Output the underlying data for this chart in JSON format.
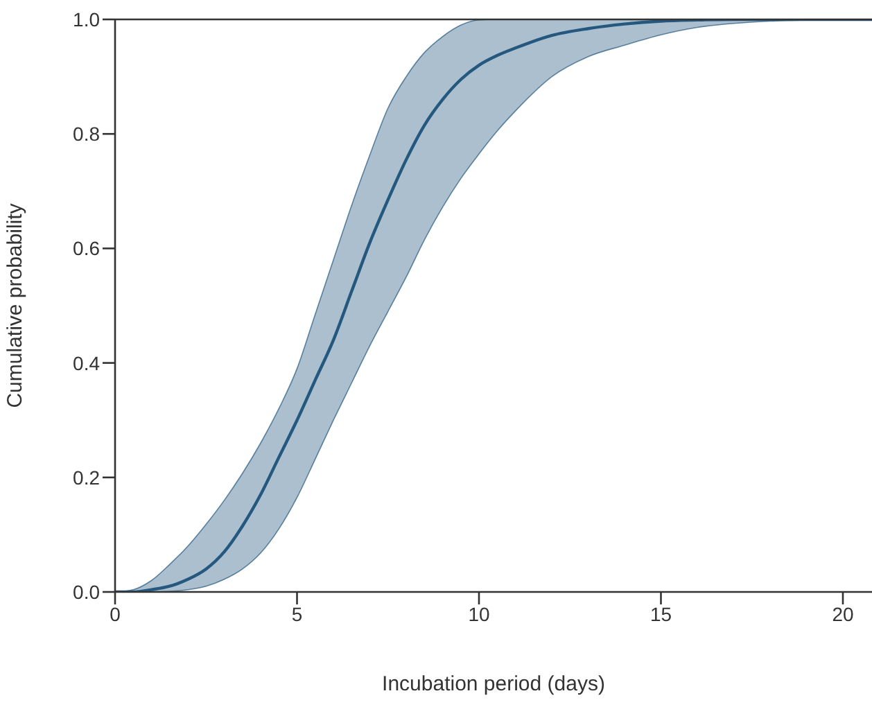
{
  "chart_data": {
    "type": "line",
    "xlabel": "Incubation period (days)",
    "ylabel": "Cumulative probability",
    "x": [
      0,
      0.5,
      1,
      1.5,
      2,
      2.5,
      3,
      3.5,
      4,
      4.5,
      5,
      5.5,
      6,
      6.5,
      7,
      7.5,
      8,
      8.5,
      9,
      9.5,
      10,
      10.5,
      11,
      12,
      13,
      14,
      15,
      16,
      17,
      18,
      19,
      20,
      20.8
    ],
    "series": [
      {
        "color": "#24587f",
        "values": [
          0,
          0,
          0.004,
          0.01,
          0.022,
          0.04,
          0.07,
          0.115,
          0.17,
          0.235,
          0.3,
          0.37,
          0.44,
          0.525,
          0.61,
          0.685,
          0.755,
          0.815,
          0.86,
          0.895,
          0.92,
          0.937,
          0.95,
          0.972,
          0.984,
          0.992,
          0.997,
          0.999,
          1,
          1,
          1,
          1,
          1
        ],
        "lower": [
          0,
          0,
          0,
          0.001,
          0.004,
          0.01,
          0.022,
          0.04,
          0.068,
          0.11,
          0.165,
          0.232,
          0.3,
          0.365,
          0.43,
          0.49,
          0.55,
          0.615,
          0.672,
          0.722,
          0.765,
          0.805,
          0.84,
          0.9,
          0.935,
          0.955,
          0.973,
          0.986,
          0.993,
          0.997,
          0.999,
          1,
          1
        ],
        "upper": [
          0,
          0.004,
          0.02,
          0.048,
          0.08,
          0.118,
          0.16,
          0.207,
          0.26,
          0.32,
          0.39,
          0.485,
          0.58,
          0.675,
          0.763,
          0.845,
          0.9,
          0.942,
          0.97,
          0.99,
          0.999,
          1,
          1,
          1,
          1,
          1,
          1,
          1,
          1,
          1,
          1,
          1,
          1
        ]
      }
    ],
    "xlim": [
      0,
      20.8
    ],
    "xticks": [
      0,
      5,
      10,
      15,
      20
    ],
    "ylim": [
      0,
      1
    ],
    "yticks": [
      {
        "value": 0,
        "label": "0.0"
      },
      {
        "value": 0.2,
        "label": "0.2"
      },
      {
        "value": 0.4,
        "label": "0.4"
      },
      {
        "value": 0.6,
        "label": "0.6"
      },
      {
        "value": 0.8,
        "label": "0.8"
      },
      {
        "value": 1,
        "label": "1.0"
      }
    ],
    "ref_lines": [
      {
        "axis": "y",
        "value": 1,
        "color": "#333333"
      }
    ]
  }
}
